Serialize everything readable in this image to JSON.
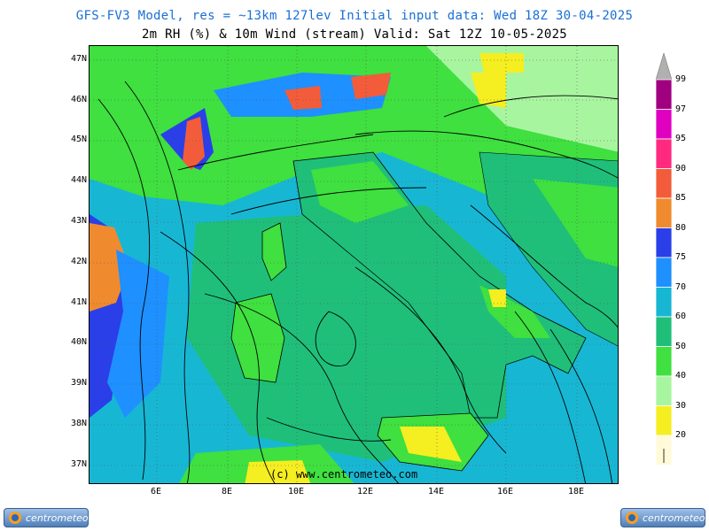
{
  "header": {
    "title": "GFS-FV3 Model, res = ~13km 127lev   Initial input data: Wed 18Z 30-04-2025",
    "subtitle": "2m RH (%) & 10m Wind (stream)  Valid: Sat 12Z 10-05-2025"
  },
  "axes": {
    "lat_labels": [
      "47N",
      "46N",
      "45N",
      "44N",
      "43N",
      "42N",
      "41N",
      "40N",
      "39N",
      "38N",
      "37N"
    ],
    "lon_labels": [
      "6E",
      "8E",
      "10E",
      "12E",
      "14E",
      "16E",
      "18E"
    ]
  },
  "legend": {
    "levels": [
      "99",
      "97",
      "95",
      "90",
      "85",
      "80",
      "75",
      "70",
      "60",
      "50",
      "40",
      "30",
      "20"
    ],
    "colors": {
      "99": "#a0007f",
      "97": "#e000c0",
      "95": "#ff2a80",
      "90": "#f25c3a",
      "85": "#f08a2e",
      "80": "#2a3fe8",
      "75": "#1e90ff",
      "70": "#17b7d4",
      "60": "#1fbf7a",
      "50": "#3fe03f",
      "40": "#a8f5a0",
      "30": "#f5ee20",
      "20": "#fffbd9"
    }
  },
  "watermark": "(c) www.centrometeo.com",
  "logos": {
    "left_text": "centrometeo",
    "right_text": "centrometeo",
    "icon": "centrometeo-logo-icon"
  }
}
